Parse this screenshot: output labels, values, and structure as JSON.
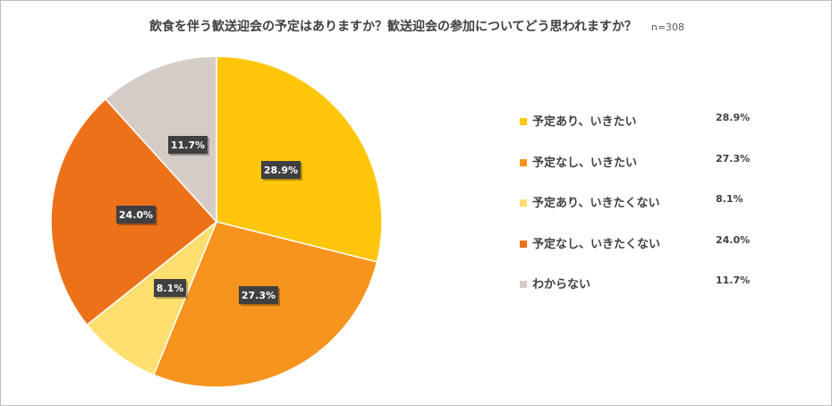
{
  "chart_data": {
    "type": "pie",
    "title": "飲食を伴う歓送迎会の予定はありますか？歓送迎会の参加についてどう思われますか？",
    "sample_size": "n=308",
    "legend_position": "right",
    "slices": [
      {
        "name": "予定あり、いきたい",
        "value": 28.9,
        "label": "28.9%",
        "color": "#FFC60B"
      },
      {
        "name": "予定なし、いきたい",
        "value": 27.3,
        "label": "27.3%",
        "color": "#F7941D"
      },
      {
        "name": "予定あり、いきたくない",
        "value": 8.1,
        "label": "8.1%",
        "color": "#FFDF70"
      },
      {
        "name": "予定なし、いきたくない",
        "value": 24.0,
        "label": "24.0%",
        "color": "#EC7118"
      },
      {
        "name": "わからない",
        "value": 11.7,
        "label": "11.7%",
        "color": "#D6CCC6"
      }
    ]
  }
}
